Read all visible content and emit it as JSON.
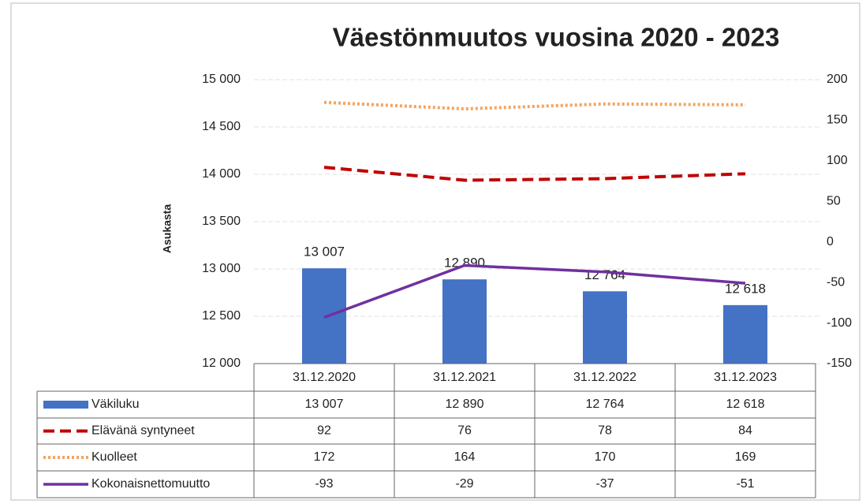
{
  "chart_data": {
    "type": "bar",
    "title": "Väestönmuutos vuosina 2020 - 2023",
    "ylabel": "Asukasta",
    "categories": [
      "31.12.2020",
      "31.12.2021",
      "31.12.2022",
      "31.12.2023"
    ],
    "series": [
      {
        "name": "Väkiluku",
        "type": "bar",
        "axis": "y",
        "color": "#4472c4",
        "values": [
          13007,
          12890,
          12764,
          12618
        ],
        "value_labels": [
          "13 007",
          "12 890",
          "12 764",
          "12 618"
        ]
      },
      {
        "name": "Elävänä syntyneet",
        "type": "line",
        "style": "dashed",
        "axis": "y2",
        "color": "#c00000",
        "values": [
          92,
          76,
          78,
          84
        ]
      },
      {
        "name": "Kuolleet",
        "type": "line",
        "style": "dotted",
        "axis": "y2",
        "color": "#f4a460",
        "values": [
          172,
          164,
          170,
          169
        ]
      },
      {
        "name": "Kokonaisnettomuutto",
        "type": "line",
        "style": "solid",
        "axis": "y2",
        "color": "#7030a0",
        "values": [
          -93,
          -29,
          -37,
          -51
        ]
      }
    ],
    "ylim": [
      12000,
      15000
    ],
    "yticks": [
      {
        "value": 12000,
        "label": "12 000"
      },
      {
        "value": 12500,
        "label": "12 500"
      },
      {
        "value": 13000,
        "label": "13 000"
      },
      {
        "value": 13500,
        "label": "13 500"
      },
      {
        "value": 14000,
        "label": "14 000"
      },
      {
        "value": 14500,
        "label": "14 500"
      },
      {
        "value": 15000,
        "label": "15 000"
      }
    ],
    "y2lim": [
      -150,
      200
    ],
    "y2ticks": [
      -150,
      -100,
      -50,
      0,
      50,
      100,
      150,
      200
    ],
    "grid": true
  }
}
